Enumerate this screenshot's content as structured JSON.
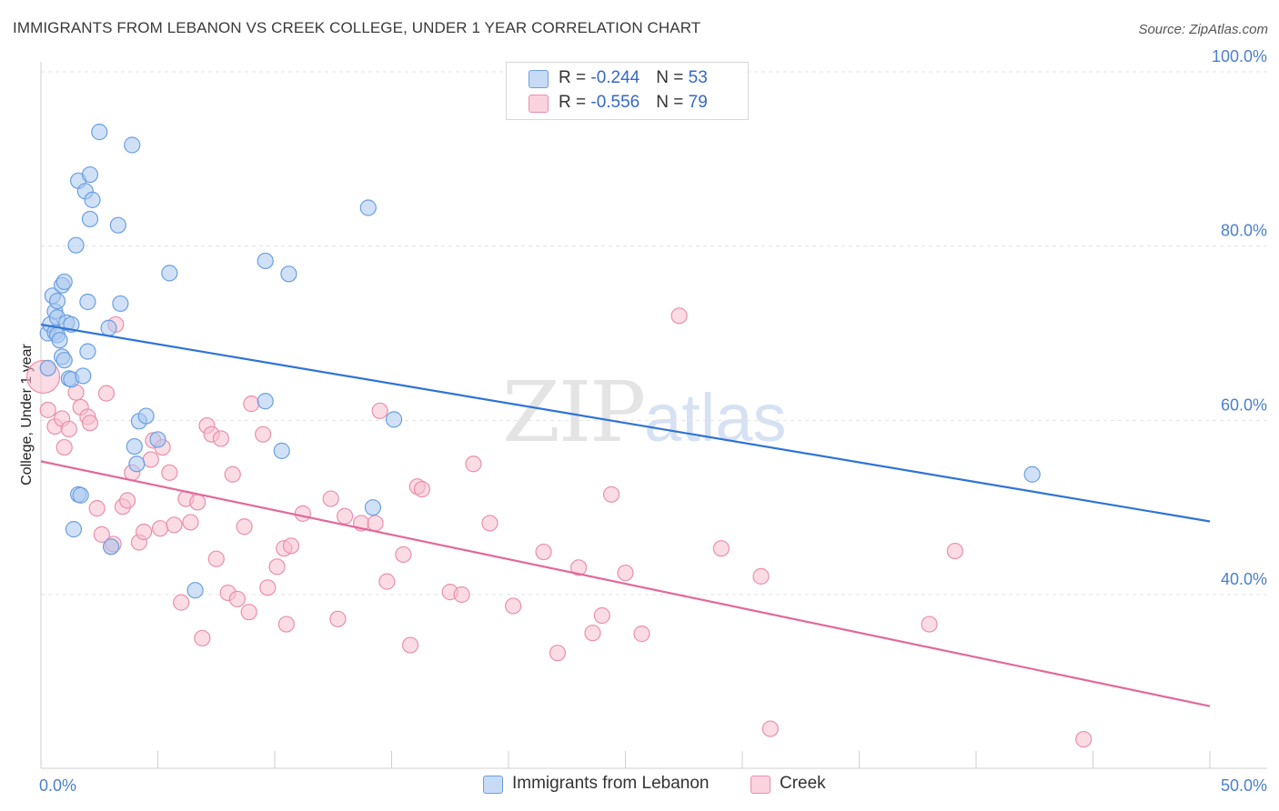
{
  "header": {
    "title": "IMMIGRANTS FROM LEBANON VS CREEK COLLEGE, UNDER 1 YEAR CORRELATION CHART",
    "source": "Source: ZipAtlas.com"
  },
  "watermark": {
    "zip": "ZIP",
    "atlas": "atlas"
  },
  "legend": {
    "rows": [
      {
        "r_label": "R = ",
        "r_value": "-0.244",
        "n_label": "N = ",
        "n_value": "53"
      },
      {
        "r_label": "R = ",
        "r_value": "-0.556",
        "n_label": "N = ",
        "n_value": "79"
      }
    ]
  },
  "colors": {
    "blue_fill": "#a9c8f0",
    "blue_stroke": "#6a9fe0",
    "blue_line": "#2f73d6",
    "pink_fill": "#f7bfd0",
    "pink_stroke": "#ea8fab",
    "pink_line": "#e2689a",
    "grid": "#e3e3e3",
    "axis_text": "#4a7fd0"
  },
  "chart_data": {
    "type": "scatter",
    "title": "IMMIGRANTS FROM LEBANON VS CREEK COLLEGE, UNDER 1 YEAR CORRELATION CHART",
    "xlabel": "",
    "ylabel": "College, Under 1 year",
    "xlim": [
      0,
      50
    ],
    "ylim": [
      20,
      104
    ],
    "x_tick_labels": [
      "0.0%",
      "50.0%"
    ],
    "y_ticks": [
      40,
      60,
      80,
      100
    ],
    "y_tick_labels": [
      "40.0%",
      "60.0%",
      "80.0%",
      "100.0%"
    ],
    "legend_position": "bottom",
    "series": [
      {
        "name": "Immigrants from Lebanon",
        "color": "#6a9fe0",
        "r": -0.244,
        "n": 53,
        "trend": {
          "x": [
            0,
            50
          ],
          "y": [
            71.0,
            48.4
          ]
        },
        "points": [
          {
            "x": 0.3,
            "y": 66.0
          },
          {
            "x": 0.3,
            "y": 70.0
          },
          {
            "x": 0.4,
            "y": 71.0
          },
          {
            "x": 0.5,
            "y": 74.3
          },
          {
            "x": 0.6,
            "y": 72.5
          },
          {
            "x": 0.6,
            "y": 70.1
          },
          {
            "x": 0.7,
            "y": 71.8
          },
          {
            "x": 0.7,
            "y": 73.7
          },
          {
            "x": 0.7,
            "y": 69.8
          },
          {
            "x": 0.8,
            "y": 69.2
          },
          {
            "x": 0.9,
            "y": 67.3
          },
          {
            "x": 0.9,
            "y": 75.5
          },
          {
            "x": 1.0,
            "y": 66.9
          },
          {
            "x": 1.0,
            "y": 75.9
          },
          {
            "x": 1.1,
            "y": 71.2
          },
          {
            "x": 1.2,
            "y": 64.8
          },
          {
            "x": 1.3,
            "y": 71.0
          },
          {
            "x": 1.3,
            "y": 64.7
          },
          {
            "x": 1.4,
            "y": 47.5
          },
          {
            "x": 1.5,
            "y": 80.1
          },
          {
            "x": 1.6,
            "y": 87.5
          },
          {
            "x": 1.6,
            "y": 51.5
          },
          {
            "x": 1.7,
            "y": 51.4
          },
          {
            "x": 1.8,
            "y": 65.1
          },
          {
            "x": 1.9,
            "y": 86.3
          },
          {
            "x": 2.0,
            "y": 73.6
          },
          {
            "x": 2.0,
            "y": 67.9
          },
          {
            "x": 2.1,
            "y": 83.1
          },
          {
            "x": 2.1,
            "y": 88.2
          },
          {
            "x": 2.2,
            "y": 85.3
          },
          {
            "x": 2.5,
            "y": 93.1
          },
          {
            "x": 2.9,
            "y": 70.6
          },
          {
            "x": 3.0,
            "y": 45.5
          },
          {
            "x": 3.3,
            "y": 82.4
          },
          {
            "x": 3.4,
            "y": 73.4
          },
          {
            "x": 3.9,
            "y": 91.6
          },
          {
            "x": 4.0,
            "y": 57.0
          },
          {
            "x": 4.1,
            "y": 55.0
          },
          {
            "x": 4.2,
            "y": 59.9
          },
          {
            "x": 4.5,
            "y": 60.5
          },
          {
            "x": 5.0,
            "y": 57.8
          },
          {
            "x": 5.5,
            "y": 76.9
          },
          {
            "x": 6.6,
            "y": 40.5
          },
          {
            "x": 9.6,
            "y": 78.3
          },
          {
            "x": 9.6,
            "y": 62.2
          },
          {
            "x": 10.3,
            "y": 56.5
          },
          {
            "x": 10.6,
            "y": 76.8
          },
          {
            "x": 14.0,
            "y": 84.4
          },
          {
            "x": 14.2,
            "y": 50.0
          },
          {
            "x": 15.1,
            "y": 60.1
          },
          {
            "x": 42.4,
            "y": 53.8
          }
        ]
      },
      {
        "name": "Creek",
        "color": "#ea8fab",
        "r": -0.556,
        "n": 79,
        "trend": {
          "x": [
            0,
            50
          ],
          "y": [
            55.3,
            27.2
          ]
        },
        "points": [
          {
            "x": 0.1,
            "y": 65.0
          },
          {
            "x": 0.3,
            "y": 61.2
          },
          {
            "x": 0.6,
            "y": 59.3
          },
          {
            "x": 0.9,
            "y": 60.2
          },
          {
            "x": 1.0,
            "y": 56.9
          },
          {
            "x": 1.2,
            "y": 59.0
          },
          {
            "x": 1.5,
            "y": 63.2
          },
          {
            "x": 1.7,
            "y": 61.5
          },
          {
            "x": 2.0,
            "y": 60.4
          },
          {
            "x": 2.1,
            "y": 59.7
          },
          {
            "x": 2.4,
            "y": 49.9
          },
          {
            "x": 2.6,
            "y": 46.9
          },
          {
            "x": 2.8,
            "y": 63.1
          },
          {
            "x": 3.0,
            "y": 45.5
          },
          {
            "x": 3.1,
            "y": 45.8
          },
          {
            "x": 3.2,
            "y": 71.0
          },
          {
            "x": 3.5,
            "y": 50.1
          },
          {
            "x": 3.7,
            "y": 50.8
          },
          {
            "x": 3.9,
            "y": 54.0
          },
          {
            "x": 4.2,
            "y": 46.0
          },
          {
            "x": 4.4,
            "y": 47.2
          },
          {
            "x": 4.7,
            "y": 55.5
          },
          {
            "x": 4.8,
            "y": 57.7
          },
          {
            "x": 5.1,
            "y": 47.6
          },
          {
            "x": 5.2,
            "y": 56.9
          },
          {
            "x": 5.5,
            "y": 54.0
          },
          {
            "x": 5.7,
            "y": 48.0
          },
          {
            "x": 6.0,
            "y": 39.1
          },
          {
            "x": 6.2,
            "y": 51.0
          },
          {
            "x": 6.4,
            "y": 48.3
          },
          {
            "x": 6.7,
            "y": 50.6
          },
          {
            "x": 6.9,
            "y": 35.0
          },
          {
            "x": 7.1,
            "y": 59.4
          },
          {
            "x": 7.3,
            "y": 58.4
          },
          {
            "x": 7.5,
            "y": 44.1
          },
          {
            "x": 7.7,
            "y": 57.9
          },
          {
            "x": 8.0,
            "y": 40.2
          },
          {
            "x": 8.2,
            "y": 53.8
          },
          {
            "x": 8.4,
            "y": 39.5
          },
          {
            "x": 8.7,
            "y": 47.8
          },
          {
            "x": 8.9,
            "y": 38.0
          },
          {
            "x": 9.0,
            "y": 61.9
          },
          {
            "x": 9.5,
            "y": 58.4
          },
          {
            "x": 9.7,
            "y": 40.8
          },
          {
            "x": 10.1,
            "y": 43.2
          },
          {
            "x": 10.4,
            "y": 45.3
          },
          {
            "x": 10.5,
            "y": 36.6
          },
          {
            "x": 10.7,
            "y": 45.6
          },
          {
            "x": 11.2,
            "y": 49.3
          },
          {
            "x": 12.4,
            "y": 51.0
          },
          {
            "x": 12.7,
            "y": 37.2
          },
          {
            "x": 13.0,
            "y": 49.0
          },
          {
            "x": 13.7,
            "y": 48.2
          },
          {
            "x": 14.3,
            "y": 48.2
          },
          {
            "x": 14.5,
            "y": 61.1
          },
          {
            "x": 14.8,
            "y": 41.5
          },
          {
            "x": 15.5,
            "y": 44.6
          },
          {
            "x": 15.8,
            "y": 34.2
          },
          {
            "x": 16.1,
            "y": 52.4
          },
          {
            "x": 16.3,
            "y": 52.1
          },
          {
            "x": 17.5,
            "y": 40.3
          },
          {
            "x": 18.0,
            "y": 40.0
          },
          {
            "x": 18.5,
            "y": 55.0
          },
          {
            "x": 19.2,
            "y": 48.2
          },
          {
            "x": 20.2,
            "y": 38.7
          },
          {
            "x": 21.5,
            "y": 44.9
          },
          {
            "x": 22.1,
            "y": 33.3
          },
          {
            "x": 23.0,
            "y": 43.1
          },
          {
            "x": 23.6,
            "y": 35.6
          },
          {
            "x": 24.0,
            "y": 37.6
          },
          {
            "x": 24.4,
            "y": 51.5
          },
          {
            "x": 25.0,
            "y": 42.5
          },
          {
            "x": 25.7,
            "y": 35.5
          },
          {
            "x": 27.3,
            "y": 72.0
          },
          {
            "x": 29.1,
            "y": 45.3
          },
          {
            "x": 30.8,
            "y": 42.1
          },
          {
            "x": 31.2,
            "y": 24.6
          },
          {
            "x": 38.0,
            "y": 36.6
          },
          {
            "x": 39.1,
            "y": 45.0
          },
          {
            "x": 44.6,
            "y": 23.4
          }
        ]
      }
    ]
  }
}
